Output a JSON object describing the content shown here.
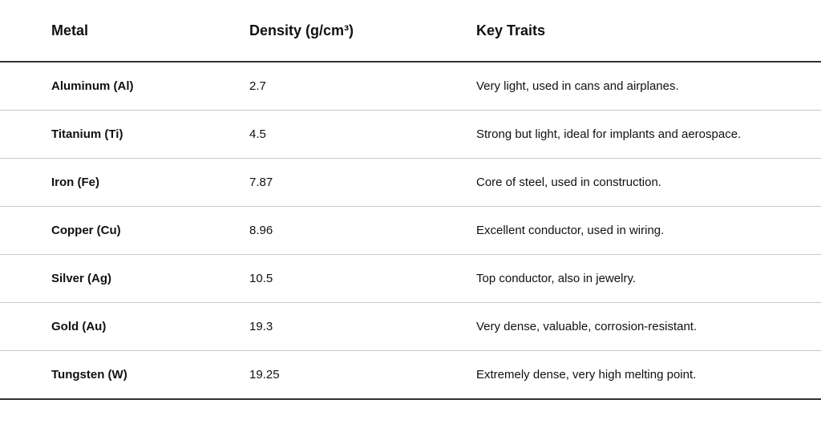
{
  "table": {
    "headers": [
      "Metal",
      "Density (g/cm³)",
      "Key Traits"
    ],
    "rows": [
      [
        "Aluminum (Al)",
        "2.7",
        "Very light, used in cans and airplanes."
      ],
      [
        "Titanium (Ti)",
        "4.5",
        "Strong but light, ideal for implants and aerospace."
      ],
      [
        "Iron (Fe)",
        "7.87",
        "Core of steel, used in construction."
      ],
      [
        "Copper (Cu)",
        "8.96",
        "Excellent conductor, used in wiring."
      ],
      [
        "Silver (Ag)",
        "10.5",
        "Top conductor, also in jewelry."
      ],
      [
        "Gold (Au)",
        "19.3",
        "Very dense, valuable, corrosion-resistant."
      ],
      [
        "Tungsten (W)",
        "19.25",
        "Extremely dense, very high melting point."
      ]
    ]
  }
}
